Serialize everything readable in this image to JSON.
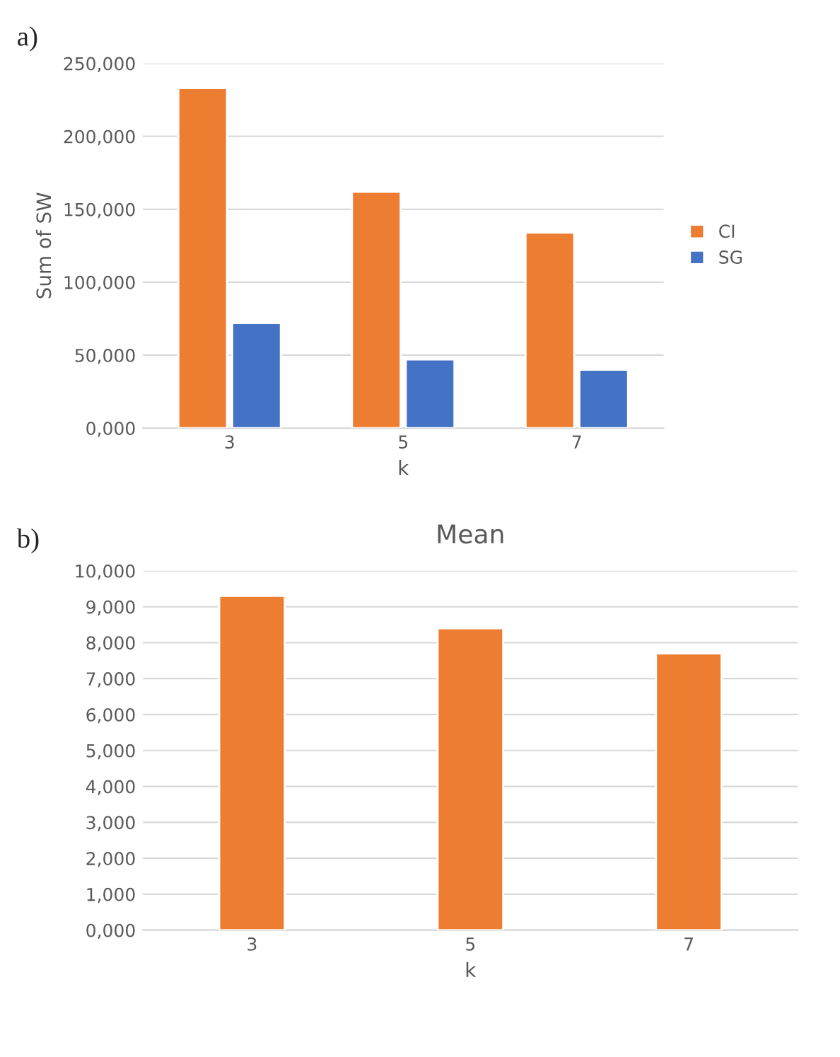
{
  "chart_data": [
    {
      "type": "bar",
      "annotations": [
        "a)"
      ],
      "xlabel": "k",
      "ylabel": "Sum of SW",
      "categories": [
        "3",
        "5",
        "7"
      ],
      "series": [
        {
          "name": "CI",
          "color": "#ed7d31",
          "values": [
            233,
            162,
            134
          ]
        },
        {
          "name": "SG",
          "color": "#4472c4",
          "values": [
            72,
            47,
            40
          ]
        }
      ],
      "ylim": [
        0,
        250
      ],
      "yticks": [
        {
          "value": 0,
          "label": "0,000"
        },
        {
          "value": 50,
          "label": "50,000"
        },
        {
          "value": 100,
          "label": "100,000"
        },
        {
          "value": 150,
          "label": "150,000"
        },
        {
          "value": 200,
          "label": "200,000"
        },
        {
          "value": 250,
          "label": "250,000"
        }
      ],
      "grid": "y",
      "legend": "right"
    },
    {
      "type": "bar",
      "annotations": [
        "b)"
      ],
      "title": "Mean",
      "xlabel": "k",
      "categories": [
        "3",
        "5",
        "7"
      ],
      "series": [
        {
          "color": "#ed7d31",
          "values": [
            9.3,
            8.4,
            7.7
          ]
        }
      ],
      "ylim": [
        0,
        10
      ],
      "yticks": [
        {
          "value": 0,
          "label": "0,000"
        },
        {
          "value": 1,
          "label": "1,000"
        },
        {
          "value": 2,
          "label": "2,000"
        },
        {
          "value": 3,
          "label": "3,000"
        },
        {
          "value": 4,
          "label": "4,000"
        },
        {
          "value": 5,
          "label": "5,000"
        },
        {
          "value": 6,
          "label": "6,000"
        },
        {
          "value": 7,
          "label": "7,000"
        },
        {
          "value": 8,
          "label": "8,000"
        },
        {
          "value": 9,
          "label": "9,000"
        },
        {
          "value": 10,
          "label": "10,000"
        }
      ],
      "grid": "y"
    }
  ]
}
